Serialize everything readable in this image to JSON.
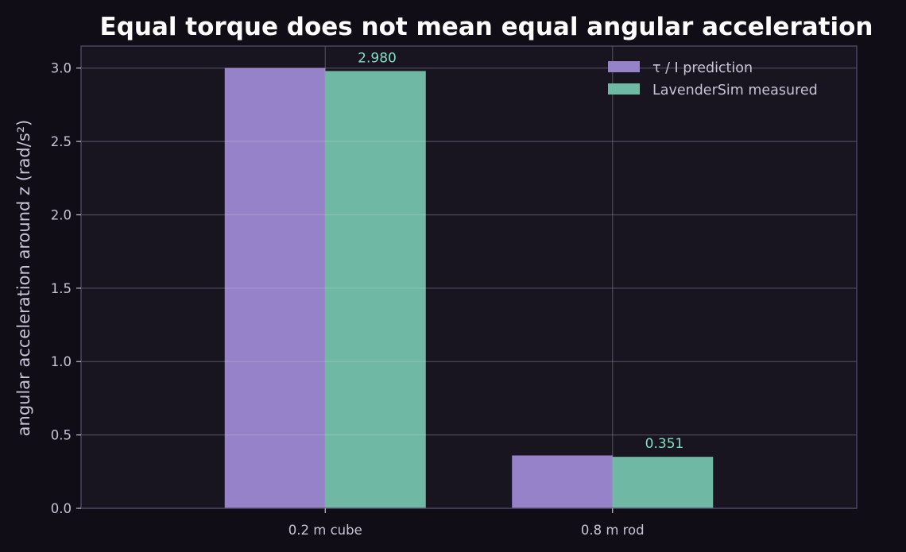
{
  "chart_data": {
    "type": "bar",
    "title": "Equal torque does not mean equal angular acceleration",
    "xlabel": "",
    "ylabel": "angular acceleration around z (rad/s²)",
    "categories": [
      "0.2 m cube",
      "0.8 m rod"
    ],
    "series": [
      {
        "name": "τ / I prediction",
        "values": [
          3.0,
          0.36
        ],
        "color": "#9682c8"
      },
      {
        "name": "LavenderSim measured",
        "values": [
          2.98,
          0.351
        ],
        "color": "#6fb8a4"
      }
    ],
    "data_labels": [
      {
        "series": 1,
        "index": 0,
        "text": "2.980"
      },
      {
        "series": 1,
        "index": 1,
        "text": "0.351"
      }
    ],
    "ylim": [
      0,
      3.15
    ],
    "yticks": [
      0.0,
      0.5,
      1.0,
      1.5,
      2.0,
      2.5,
      3.0
    ],
    "ytick_labels": [
      "0.0",
      "0.5",
      "1.0",
      "1.5",
      "2.0",
      "2.5",
      "3.0"
    ],
    "grid": true,
    "legend_position": "top-right",
    "colors": {
      "background": "#100d17",
      "plot_background": "#181520",
      "frame": "#4a4460",
      "grid": "#2c2838",
      "text": "#c8c4d4",
      "title": "#ffffff",
      "data_label": "#7fe0c4"
    }
  }
}
